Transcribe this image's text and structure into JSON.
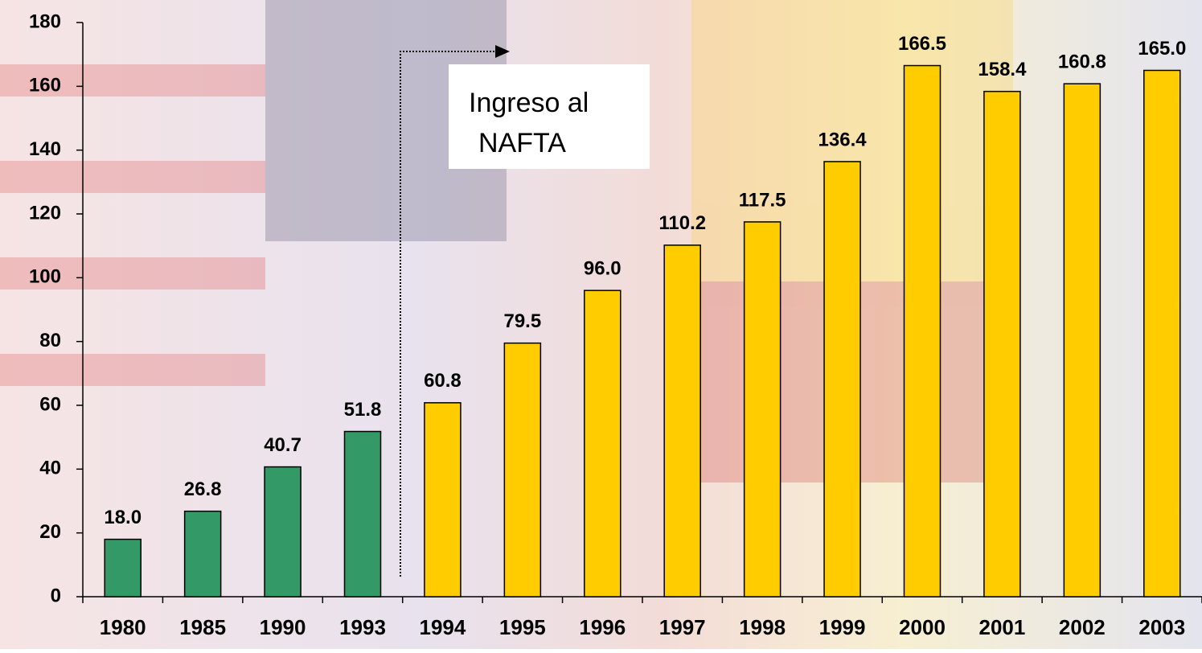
{
  "chart_data": {
    "type": "bar",
    "categories": [
      "1980",
      "1985",
      "1990",
      "1993",
      "1994",
      "1995",
      "1996",
      "1997",
      "1998",
      "1999",
      "2000",
      "2001",
      "2002",
      "2003"
    ],
    "values": [
      18.0,
      26.8,
      40.7,
      51.8,
      60.8,
      79.5,
      96.0,
      110.2,
      117.5,
      136.4,
      166.5,
      158.4,
      160.8,
      165.0
    ],
    "value_labels": [
      "18.0",
      "26.8",
      "40.7",
      "51.8",
      "60.8",
      "79.5",
      "96.0",
      "110.2",
      "117.5",
      "136.4",
      "166.5",
      "158.4",
      "160.8",
      "165.0"
    ],
    "colors": [
      "#339966",
      "#339966",
      "#339966",
      "#339966",
      "#ffcc00",
      "#ffcc00",
      "#ffcc00",
      "#ffcc00",
      "#ffcc00",
      "#ffcc00",
      "#ffcc00",
      "#ffcc00",
      "#ffcc00",
      "#ffcc00"
    ],
    "ylim": [
      0,
      180
    ],
    "yticks": [
      0,
      20,
      40,
      60,
      80,
      100,
      120,
      140,
      160,
      180
    ],
    "annotation": [
      "Ingreso al",
      "NAFTA"
    ]
  }
}
